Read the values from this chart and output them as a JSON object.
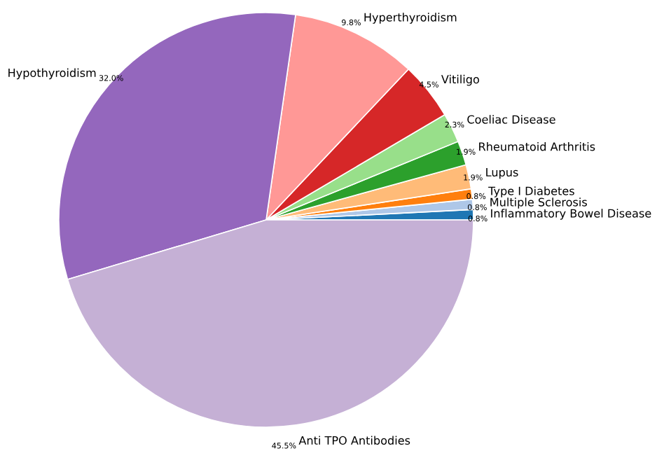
{
  "chart_data": {
    "type": "pie",
    "categories": [
      "Inflammatory Bowel Disease",
      "Multiple Sclerosis",
      "Type I Diabetes",
      "Lupus",
      "Rheumatoid Arthritis",
      "Coeliac Disease",
      "Vitiligo",
      "Hyperthyroidism",
      "Hypothyroidism",
      "Anti TPO Antibodies"
    ],
    "values": [
      0.8,
      0.8,
      0.8,
      1.9,
      1.9,
      2.3,
      4.5,
      9.8,
      32.0,
      45.5
    ],
    "value_labels": [
      "0.8%",
      "0.8%",
      "0.8%",
      "1.9%",
      "1.9%",
      "2.3%",
      "4.5%",
      "9.8%",
      "32.0%",
      "45.5%"
    ],
    "colors": [
      "#1f77b4",
      "#aec7e8",
      "#ff7f0e",
      "#ffbb78",
      "#2ca02c",
      "#98df8a",
      "#d62728",
      "#ff9896",
      "#9467bd",
      "#c5b0d5"
    ],
    "legend": false
  }
}
